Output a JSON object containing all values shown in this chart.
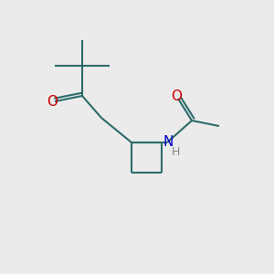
{
  "bg_color": "#ebebeb",
  "bond_color": "#2d6b6b",
  "oxygen_color": "#cc0000",
  "nitrogen_color": "#0000cc",
  "hydrogen_color": "#888888",
  "line_width": 1.5,
  "font_size_atom": 11,
  "figsize": [
    3.0,
    3.0
  ],
  "dpi": 100,
  "xlim": [
    0,
    10
  ],
  "ylim": [
    0,
    10
  ]
}
